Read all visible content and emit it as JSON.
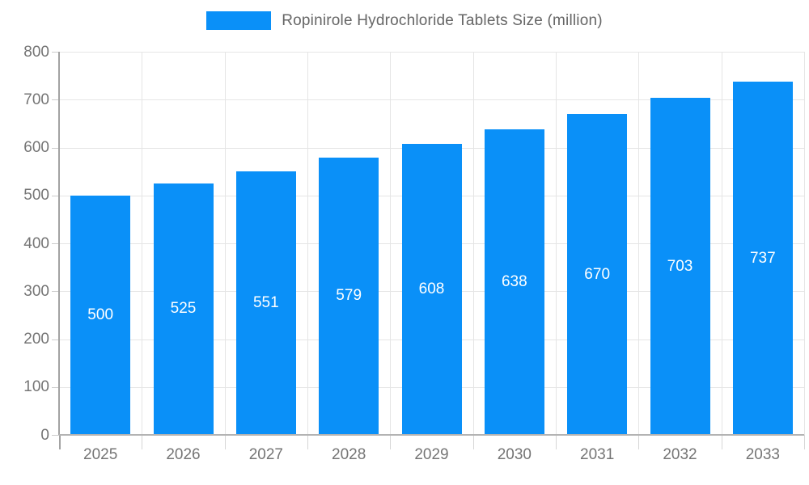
{
  "legend": {
    "label": "Ropinirole Hydrochloride Tablets Size (million)"
  },
  "colors": {
    "bar": "#0a90f8",
    "grid": "#e5e5e5",
    "axis": "#a3a3a3",
    "tick_text": "#757575",
    "legend_text": "#666666",
    "value_label": "#ffffff"
  },
  "chart_data": {
    "type": "bar",
    "title": "Ropinirole Hydrochloride Tablets Size (million)",
    "categories": [
      "2025",
      "2026",
      "2027",
      "2028",
      "2029",
      "2030",
      "2031",
      "2032",
      "2033"
    ],
    "values": [
      500,
      525,
      551,
      579,
      608,
      638,
      670,
      703,
      737
    ],
    "xlabel": "",
    "ylabel": "",
    "ylim": [
      0,
      800
    ],
    "yticks": [
      0,
      100,
      200,
      300,
      400,
      500,
      600,
      700,
      800
    ],
    "grid": "on",
    "legend_position": "top-center",
    "value_labels": "inside-center-white"
  }
}
